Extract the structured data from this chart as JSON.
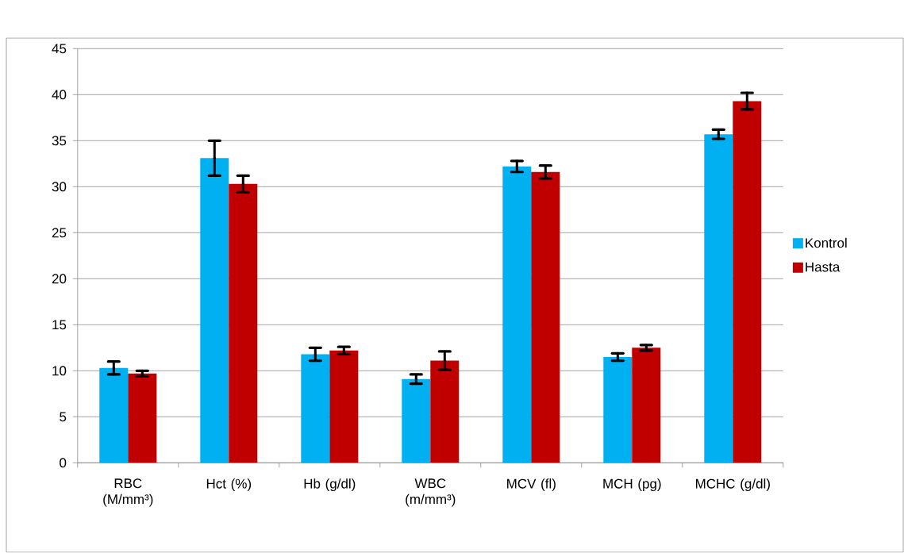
{
  "chart_data": {
    "type": "bar",
    "categories": [
      "RBC (M/mm³)",
      "Hct (%)",
      "Hb (g/dl)",
      "WBC (m/mm³)",
      "MCV (fl)",
      "MCH (pg)",
      "MCHC (g/dl)"
    ],
    "series": [
      {
        "name": "Kontrol",
        "color": "#00b0f0",
        "values": [
          10.3,
          33.1,
          11.8,
          9.1,
          32.2,
          11.5,
          35.7
        ],
        "errors": [
          0.7,
          1.9,
          0.7,
          0.5,
          0.6,
          0.4,
          0.5
        ]
      },
      {
        "name": "Hasta",
        "color": "#c00000",
        "values": [
          9.7,
          30.3,
          12.2,
          11.1,
          31.6,
          12.5,
          39.3
        ],
        "errors": [
          0.3,
          0.9,
          0.4,
          1.0,
          0.7,
          0.3,
          0.9
        ]
      }
    ],
    "ylim": [
      0,
      45
    ],
    "yticks": [
      0,
      5,
      10,
      15,
      20,
      25,
      30,
      35,
      40,
      45
    ],
    "grid": "y",
    "legend": "right"
  }
}
